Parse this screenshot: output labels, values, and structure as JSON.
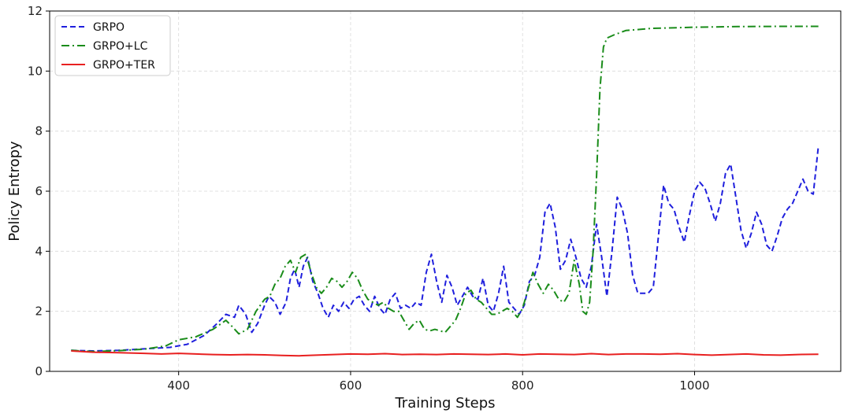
{
  "chart_data": {
    "type": "line",
    "title": "",
    "xlabel": "Training Steps",
    "ylabel": "Policy Entropy",
    "xlim": [
      250,
      1170
    ],
    "ylim": [
      0,
      12
    ],
    "xticks": [
      400,
      600,
      800,
      1000
    ],
    "yticks": [
      0,
      2,
      4,
      6,
      8,
      10,
      12
    ],
    "grid": true,
    "legend_position": "top-left",
    "series": [
      {
        "name": "GRPO",
        "color": "#1f1fdd",
        "style": "dashed",
        "points": [
          [
            275,
            0.7
          ],
          [
            300,
            0.68
          ],
          [
            330,
            0.7
          ],
          [
            360,
            0.75
          ],
          [
            390,
            0.8
          ],
          [
            410,
            0.9
          ],
          [
            430,
            1.2
          ],
          [
            445,
            1.6
          ],
          [
            455,
            1.9
          ],
          [
            465,
            1.8
          ],
          [
            470,
            2.2
          ],
          [
            478,
            1.9
          ],
          [
            485,
            1.3
          ],
          [
            492,
            1.6
          ],
          [
            500,
            2.2
          ],
          [
            505,
            2.5
          ],
          [
            512,
            2.3
          ],
          [
            518,
            1.9
          ],
          [
            525,
            2.3
          ],
          [
            530,
            3.1
          ],
          [
            535,
            3.4
          ],
          [
            540,
            2.8
          ],
          [
            545,
            3.5
          ],
          [
            550,
            3.8
          ],
          [
            556,
            3.0
          ],
          [
            562,
            2.6
          ],
          [
            568,
            2.1
          ],
          [
            574,
            1.8
          ],
          [
            580,
            2.2
          ],
          [
            586,
            2.0
          ],
          [
            592,
            2.3
          ],
          [
            598,
            2.1
          ],
          [
            604,
            2.4
          ],
          [
            610,
            2.5
          ],
          [
            616,
            2.2
          ],
          [
            622,
            2.0
          ],
          [
            628,
            2.5
          ],
          [
            634,
            2.1
          ],
          [
            640,
            1.9
          ],
          [
            646,
            2.4
          ],
          [
            652,
            2.6
          ],
          [
            658,
            2.1
          ],
          [
            664,
            2.2
          ],
          [
            670,
            2.1
          ],
          [
            676,
            2.3
          ],
          [
            682,
            2.2
          ],
          [
            688,
            3.3
          ],
          [
            694,
            3.9
          ],
          [
            700,
            3.0
          ],
          [
            706,
            2.3
          ],
          [
            712,
            3.2
          ],
          [
            718,
            2.8
          ],
          [
            724,
            2.2
          ],
          [
            730,
            2.5
          ],
          [
            736,
            2.8
          ],
          [
            742,
            2.5
          ],
          [
            748,
            2.4
          ],
          [
            754,
            3.1
          ],
          [
            760,
            2.2
          ],
          [
            766,
            2.0
          ],
          [
            772,
            2.6
          ],
          [
            778,
            3.5
          ],
          [
            784,
            2.3
          ],
          [
            790,
            2.1
          ],
          [
            796,
            1.9
          ],
          [
            802,
            2.2
          ],
          [
            808,
            3.0
          ],
          [
            814,
            3.2
          ],
          [
            820,
            3.8
          ],
          [
            826,
            5.3
          ],
          [
            832,
            5.6
          ],
          [
            838,
            4.8
          ],
          [
            844,
            3.4
          ],
          [
            850,
            3.7
          ],
          [
            856,
            4.4
          ],
          [
            862,
            3.8
          ],
          [
            868,
            3.1
          ],
          [
            874,
            2.8
          ],
          [
            880,
            3.5
          ],
          [
            886,
            4.9
          ],
          [
            892,
            3.8
          ],
          [
            898,
            2.5
          ],
          [
            904,
            4.0
          ],
          [
            910,
            5.8
          ],
          [
            916,
            5.4
          ],
          [
            922,
            4.6
          ],
          [
            928,
            3.2
          ],
          [
            934,
            2.6
          ],
          [
            940,
            2.6
          ],
          [
            946,
            2.6
          ],
          [
            952,
            2.8
          ],
          [
            958,
            4.5
          ],
          [
            964,
            6.2
          ],
          [
            970,
            5.6
          ],
          [
            976,
            5.4
          ],
          [
            982,
            4.8
          ],
          [
            988,
            4.3
          ],
          [
            994,
            5.2
          ],
          [
            1000,
            6.0
          ],
          [
            1006,
            6.3
          ],
          [
            1012,
            6.1
          ],
          [
            1018,
            5.6
          ],
          [
            1024,
            5.0
          ],
          [
            1030,
            5.6
          ],
          [
            1036,
            6.6
          ],
          [
            1042,
            6.9
          ],
          [
            1048,
            5.8
          ],
          [
            1054,
            4.7
          ],
          [
            1060,
            4.1
          ],
          [
            1066,
            4.6
          ],
          [
            1072,
            5.3
          ],
          [
            1078,
            4.9
          ],
          [
            1084,
            4.2
          ],
          [
            1090,
            4.0
          ],
          [
            1096,
            4.5
          ],
          [
            1102,
            5.1
          ],
          [
            1108,
            5.4
          ],
          [
            1114,
            5.6
          ],
          [
            1120,
            6.0
          ],
          [
            1126,
            6.4
          ],
          [
            1132,
            6.0
          ],
          [
            1138,
            5.9
          ],
          [
            1144,
            7.5
          ]
        ]
      },
      {
        "name": "GRPO+LC",
        "color": "#1a8c1a",
        "style": "dashdot",
        "points": [
          [
            275,
            0.7
          ],
          [
            300,
            0.66
          ],
          [
            330,
            0.69
          ],
          [
            360,
            0.74
          ],
          [
            385,
            0.85
          ],
          [
            400,
            1.05
          ],
          [
            420,
            1.15
          ],
          [
            440,
            1.4
          ],
          [
            455,
            1.7
          ],
          [
            462,
            1.5
          ],
          [
            470,
            1.25
          ],
          [
            480,
            1.4
          ],
          [
            490,
            2.0
          ],
          [
            500,
            2.4
          ],
          [
            506,
            2.5
          ],
          [
            512,
            2.9
          ],
          [
            518,
            3.1
          ],
          [
            524,
            3.5
          ],
          [
            530,
            3.7
          ],
          [
            536,
            3.3
          ],
          [
            542,
            3.8
          ],
          [
            548,
            3.9
          ],
          [
            554,
            3.3
          ],
          [
            560,
            2.8
          ],
          [
            566,
            2.6
          ],
          [
            572,
            2.8
          ],
          [
            578,
            3.1
          ],
          [
            584,
            3.0
          ],
          [
            590,
            2.8
          ],
          [
            596,
            3.0
          ],
          [
            602,
            3.3
          ],
          [
            608,
            3.1
          ],
          [
            614,
            2.7
          ],
          [
            620,
            2.4
          ],
          [
            626,
            2.3
          ],
          [
            632,
            2.2
          ],
          [
            638,
            2.3
          ],
          [
            644,
            2.1
          ],
          [
            650,
            2.0
          ],
          [
            656,
            2.0
          ],
          [
            662,
            1.7
          ],
          [
            668,
            1.4
          ],
          [
            674,
            1.6
          ],
          [
            680,
            1.7
          ],
          [
            686,
            1.4
          ],
          [
            692,
            1.35
          ],
          [
            698,
            1.4
          ],
          [
            704,
            1.35
          ],
          [
            710,
            1.3
          ],
          [
            716,
            1.5
          ],
          [
            722,
            1.7
          ],
          [
            728,
            2.1
          ],
          [
            734,
            2.6
          ],
          [
            740,
            2.7
          ],
          [
            746,
            2.4
          ],
          [
            752,
            2.3
          ],
          [
            758,
            2.1
          ],
          [
            764,
            1.9
          ],
          [
            770,
            1.9
          ],
          [
            776,
            2.0
          ],
          [
            782,
            2.1
          ],
          [
            788,
            2.0
          ],
          [
            794,
            1.8
          ],
          [
            800,
            2.1
          ],
          [
            806,
            2.7
          ],
          [
            812,
            3.3
          ],
          [
            818,
            2.9
          ],
          [
            824,
            2.6
          ],
          [
            830,
            2.9
          ],
          [
            836,
            2.7
          ],
          [
            842,
            2.4
          ],
          [
            848,
            2.3
          ],
          [
            854,
            2.6
          ],
          [
            860,
            3.7
          ],
          [
            866,
            2.9
          ],
          [
            870,
            2.0
          ],
          [
            874,
            1.9
          ],
          [
            878,
            2.3
          ],
          [
            882,
            4.0
          ],
          [
            886,
            6.5
          ],
          [
            890,
            9.4
          ],
          [
            894,
            10.8
          ],
          [
            898,
            11.1
          ],
          [
            906,
            11.2
          ],
          [
            920,
            11.35
          ],
          [
            950,
            11.42
          ],
          [
            1000,
            11.46
          ],
          [
            1050,
            11.48
          ],
          [
            1100,
            11.49
          ],
          [
            1144,
            11.49
          ]
        ]
      },
      {
        "name": "GRPO+TER",
        "color": "#e82020",
        "style": "solid",
        "points": [
          [
            275,
            0.68
          ],
          [
            300,
            0.64
          ],
          [
            330,
            0.62
          ],
          [
            360,
            0.6
          ],
          [
            380,
            0.58
          ],
          [
            400,
            0.6
          ],
          [
            420,
            0.58
          ],
          [
            440,
            0.56
          ],
          [
            460,
            0.55
          ],
          [
            480,
            0.56
          ],
          [
            500,
            0.55
          ],
          [
            520,
            0.53
          ],
          [
            540,
            0.52
          ],
          [
            560,
            0.54
          ],
          [
            580,
            0.56
          ],
          [
            600,
            0.58
          ],
          [
            620,
            0.57
          ],
          [
            640,
            0.59
          ],
          [
            660,
            0.56
          ],
          [
            680,
            0.57
          ],
          [
            700,
            0.56
          ],
          [
            720,
            0.58
          ],
          [
            740,
            0.57
          ],
          [
            760,
            0.56
          ],
          [
            780,
            0.58
          ],
          [
            800,
            0.55
          ],
          [
            820,
            0.58
          ],
          [
            840,
            0.57
          ],
          [
            860,
            0.56
          ],
          [
            880,
            0.59
          ],
          [
            900,
            0.56
          ],
          [
            920,
            0.58
          ],
          [
            940,
            0.58
          ],
          [
            960,
            0.57
          ],
          [
            980,
            0.59
          ],
          [
            1000,
            0.56
          ],
          [
            1020,
            0.54
          ],
          [
            1040,
            0.56
          ],
          [
            1060,
            0.58
          ],
          [
            1080,
            0.55
          ],
          [
            1100,
            0.54
          ],
          [
            1120,
            0.56
          ],
          [
            1144,
            0.57
          ]
        ]
      }
    ]
  }
}
